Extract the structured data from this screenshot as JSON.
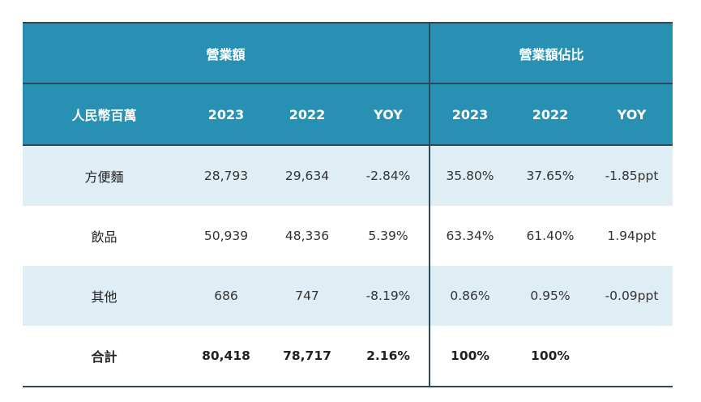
{
  "group_headers": [
    "營業額",
    "營業額佔比"
  ],
  "column_headers": [
    "人民幣百萬",
    "2023",
    "2022",
    "YOY",
    "2023",
    "2022",
    "YOY"
  ],
  "rows": [
    {
      "label": "方便麵",
      "cells": [
        "28,793",
        "29,634",
        "-2.84%",
        "35.80%",
        "37.65%",
        "-1.85ppt"
      ]
    },
    {
      "label": "飲品",
      "cells": [
        "50,939",
        "48,336",
        "5.39%",
        "63.34%",
        "61.40%",
        "1.94ppt"
      ]
    },
    {
      "label": "其他",
      "cells": [
        "686",
        "747",
        "-8.19%",
        "0.86%",
        "0.95%",
        "-0.09ppt"
      ]
    },
    {
      "label": "合計",
      "cells": [
        "80,418",
        "78,717",
        "2.16%",
        "100%",
        "100%",
        ""
      ]
    }
  ],
  "colors": {
    "header_bg": "#2891b3",
    "stripe_bg": "#deeef4",
    "rule": "#2b4a5a"
  }
}
